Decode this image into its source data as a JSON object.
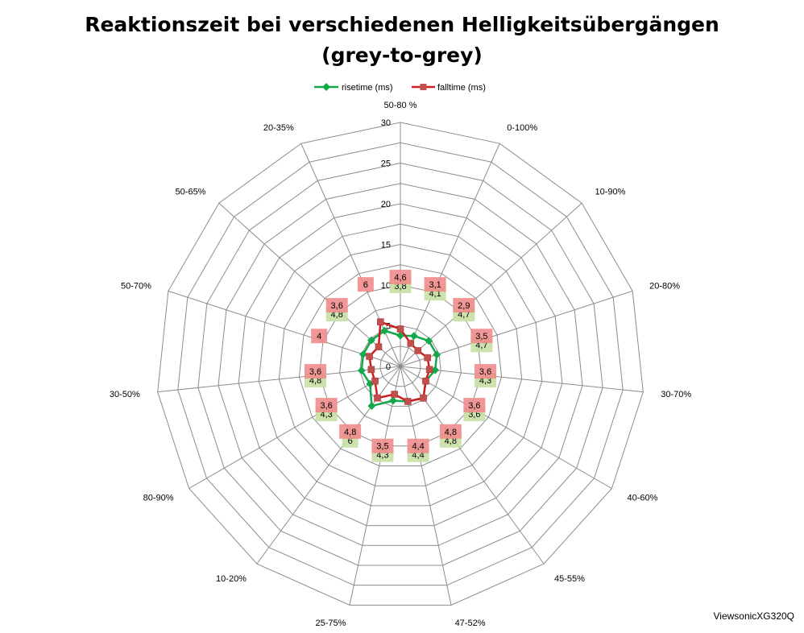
{
  "title_line1": "Reaktionszeit bei verschiedenen Helligkeitsübergängen",
  "title_line2": "(grey-to-grey)",
  "watermark": "ViewsonicXG320Q",
  "chart_data": {
    "type": "radar",
    "categories": [
      "50-80 %",
      "0-100%",
      "10-90%",
      "20-80%",
      "30-70%",
      "40-60%",
      "45-55%",
      "47-52%",
      "25-75%",
      "10-20%",
      "80-90%",
      "30-50%",
      "50-70%",
      "50-65%",
      "20-35%"
    ],
    "rlim": [
      0,
      30
    ],
    "ticks": [
      0,
      5,
      10,
      15,
      20,
      25,
      30
    ],
    "grid": true,
    "legend_position": "top",
    "series": [
      {
        "name": "risetime (ms)",
        "color": "#14A84A",
        "label_bg": "#C6E0A4",
        "values": [
          3.8,
          4.1,
          4.7,
          4.7,
          4.3,
          3.6,
          4.8,
          4.4,
          4.3,
          6,
          4.3,
          4.8,
          4.8,
          4.8,
          4.8
        ],
        "labels": [
          "3,8",
          "4,1",
          "4,7",
          "4,7",
          "4,3",
          "3,6",
          "4,8",
          "4,4",
          "4,3",
          "6",
          "4,3",
          "4,8",
          "",
          "4,8",
          ""
        ]
      },
      {
        "name": "falltime (ms)",
        "color": "#CC1E1E",
        "label_bg": "#F08C8C",
        "values": [
          4.6,
          3.1,
          2.9,
          3.5,
          3.6,
          3.6,
          4.8,
          4.4,
          3.5,
          4.8,
          3.6,
          3.6,
          4,
          3.6,
          6
        ],
        "labels": [
          "4,6",
          "3,1",
          "2,9",
          "3,5",
          "3,6",
          "3,6",
          "4,8",
          "4,4",
          "3,5",
          "4,8",
          "3,6",
          "3,6",
          "4",
          "3,6",
          "6"
        ]
      }
    ]
  }
}
